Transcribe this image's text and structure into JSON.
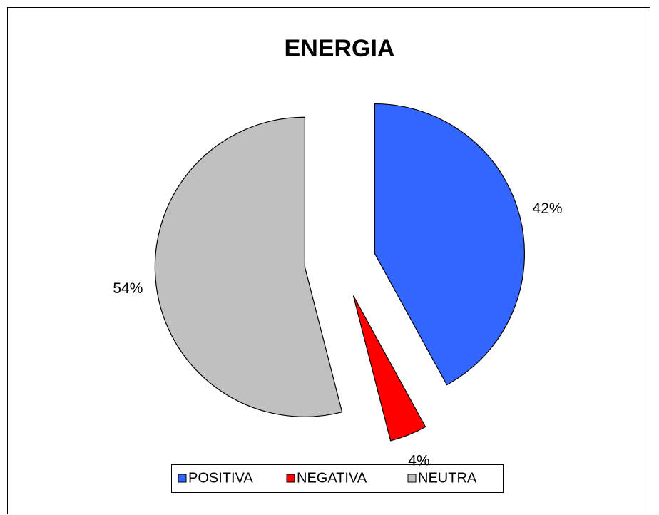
{
  "chart_data": {
    "type": "pie",
    "title": "ENERGIA",
    "categories": [
      "POSITIVA",
      "NEGATIVA",
      "NEUTRA"
    ],
    "values": [
      42,
      4,
      54
    ],
    "value_labels": [
      "42%",
      "4%",
      "54%"
    ],
    "colors": [
      "#3366ff",
      "#ff0000",
      "#c0c0c0"
    ],
    "legend": "bottom"
  }
}
